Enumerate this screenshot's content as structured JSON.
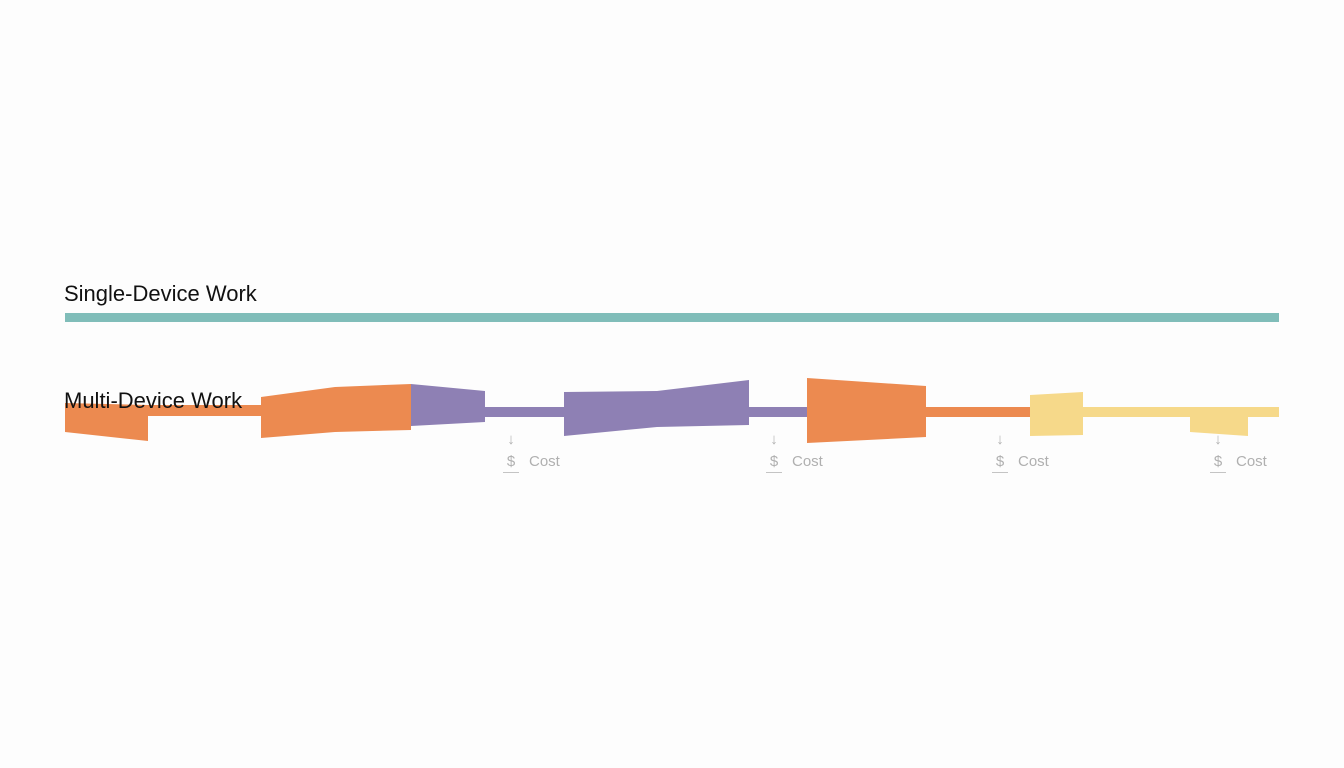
{
  "single": {
    "title": "Single-Device Work",
    "color": "#80bdb9"
  },
  "multi": {
    "title": "Multi-Device Work"
  },
  "colors": {
    "orange": "#ec8a50",
    "purple": "#8e80b4",
    "yellow": "#f6d98a"
  },
  "cost_markers": [
    {
      "arrow": "↓",
      "symbol": "$",
      "label": "Cost"
    },
    {
      "arrow": "↓",
      "symbol": "$",
      "label": "Cost"
    },
    {
      "arrow": "↓",
      "symbol": "$",
      "label": "Cost"
    },
    {
      "arrow": "↓",
      "symbol": "$",
      "label": "Cost"
    }
  ]
}
